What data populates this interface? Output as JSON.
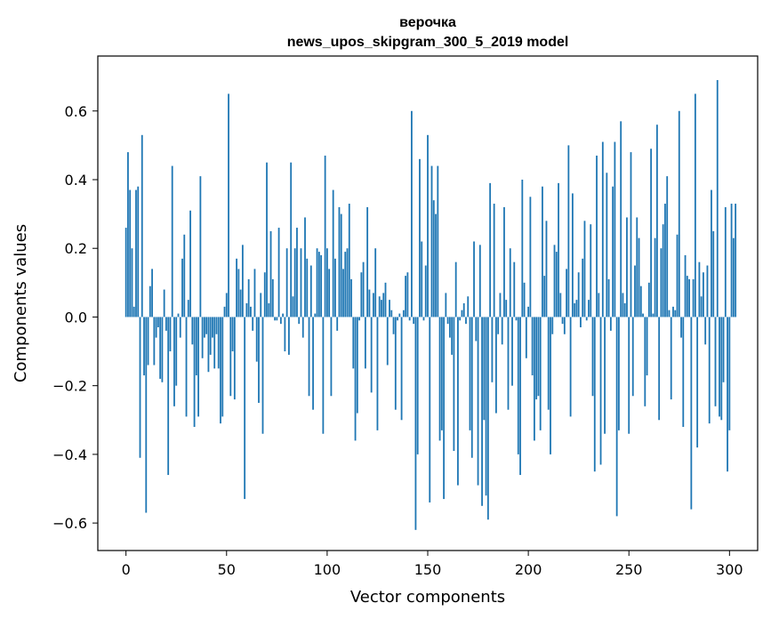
{
  "chart_data": {
    "type": "bar",
    "title_line1": "верочка",
    "title_line2": "news_upos_skipgram_300_5_2019 model",
    "xlabel": "Vector components",
    "ylabel": "Components values",
    "xlim": [
      -14,
      314
    ],
    "ylim": [
      -0.68,
      0.76
    ],
    "xticks": [
      0,
      50,
      100,
      150,
      200,
      250,
      300
    ],
    "yticks": [
      -0.6,
      -0.4,
      -0.2,
      0.0,
      0.2,
      0.4,
      0.6
    ],
    "ytick_labels": [
      "−0.6",
      "−0.4",
      "−0.2",
      "0.0",
      "0.2",
      "0.4",
      "0.6"
    ],
    "bar_color": "#1f77b4",
    "values": [
      0.26,
      0.48,
      0.37,
      0.2,
      0.03,
      0.37,
      0.38,
      -0.41,
      0.53,
      -0.17,
      -0.57,
      -0.14,
      0.09,
      0.14,
      -0.14,
      -0.06,
      -0.03,
      -0.18,
      -0.19,
      0.08,
      -0.04,
      -0.46,
      -0.1,
      0.44,
      -0.26,
      -0.2,
      0.01,
      -0.06,
      0.17,
      0.24,
      -0.29,
      0.05,
      0.31,
      -0.08,
      -0.32,
      -0.17,
      -0.29,
      0.41,
      -0.12,
      -0.06,
      -0.05,
      -0.16,
      -0.11,
      -0.06,
      -0.15,
      -0.05,
      -0.15,
      -0.31,
      -0.29,
      0.03,
      0.07,
      0.65,
      -0.23,
      -0.1,
      -0.24,
      0.17,
      0.14,
      0.08,
      0.21,
      -0.53,
      0.04,
      0.11,
      0.03,
      -0.04,
      0.14,
      -0.13,
      -0.25,
      0.07,
      -0.34,
      0.13,
      0.45,
      0.04,
      0.25,
      0.11,
      -0.01,
      -0.01,
      0.26,
      -0.02,
      0.01,
      -0.1,
      0.2,
      -0.11,
      0.45,
      0.06,
      0.2,
      0.26,
      -0.02,
      0.2,
      -0.06,
      0.29,
      0.17,
      -0.23,
      0.15,
      -0.27,
      0.01,
      0.2,
      0.19,
      0.18,
      -0.34,
      0.47,
      0.2,
      0.14,
      -0.23,
      0.37,
      0.17,
      -0.04,
      0.32,
      0.3,
      0.14,
      0.19,
      0.2,
      0.33,
      0.11,
      -0.15,
      -0.36,
      -0.28,
      -0.01,
      0.13,
      0.16,
      -0.15,
      0.32,
      0.08,
      -0.22,
      0.07,
      0.2,
      -0.33,
      0.06,
      0.05,
      0.07,
      0.1,
      -0.14,
      0.05,
      0.02,
      -0.05,
      -0.27,
      -0.01,
      0.01,
      -0.3,
      0.02,
      0.12,
      0.13,
      -0.01,
      0.6,
      -0.02,
      -0.62,
      -0.4,
      0.46,
      0.22,
      -0.01,
      0.15,
      0.53,
      -0.54,
      0.44,
      0.34,
      0.3,
      0.44,
      -0.36,
      -0.33,
      -0.53,
      0.07,
      -0.02,
      -0.06,
      -0.11,
      -0.39,
      0.16,
      -0.49,
      -0.01,
      0.02,
      0.04,
      -0.02,
      0.06,
      -0.33,
      -0.41,
      0.22,
      -0.07,
      -0.49,
      0.21,
      -0.55,
      -0.3,
      -0.52,
      -0.59,
      0.39,
      -0.19,
      0.33,
      -0.28,
      -0.05,
      0.07,
      -0.08,
      0.32,
      0.05,
      -0.27,
      0.2,
      -0.2,
      0.16,
      -0.01,
      -0.4,
      -0.46,
      0.4,
      0.1,
      -0.12,
      0.03,
      0.35,
      -0.17,
      -0.36,
      -0.24,
      -0.23,
      -0.33,
      0.38,
      0.12,
      0.28,
      -0.27,
      -0.4,
      -0.05,
      0.21,
      0.19,
      0.39,
      0.07,
      -0.02,
      -0.05,
      0.14,
      0.5,
      -0.29,
      0.36,
      0.04,
      0.05,
      0.13,
      -0.03,
      0.17,
      0.28,
      -0.01,
      0.05,
      0.27,
      -0.23,
      -0.45,
      0.47,
      0.07,
      -0.43,
      0.51,
      -0.34,
      0.42,
      0.11,
      -0.04,
      0.38,
      0.51,
      -0.58,
      -0.33,
      0.57,
      0.07,
      0.04,
      0.29,
      -0.34,
      0.48,
      -0.23,
      0.15,
      0.29,
      0.23,
      0.09,
      0.01,
      -0.26,
      -0.17,
      0.1,
      0.49,
      0.01,
      0.23,
      0.56,
      -0.3,
      0.2,
      0.27,
      0.33,
      0.41,
      0.02,
      -0.24,
      0.03,
      0.02,
      0.24,
      0.6,
      -0.06,
      -0.32,
      0.18,
      0.12,
      0.11,
      -0.56,
      0.11,
      0.65,
      -0.38,
      0.16,
      0.06,
      0.13,
      -0.08,
      0.15,
      -0.31,
      0.37,
      0.25,
      -0.26,
      0.69,
      -0.29,
      -0.3,
      -0.19,
      0.32,
      -0.45,
      -0.33,
      0.33,
      0.23,
      0.33
    ]
  }
}
